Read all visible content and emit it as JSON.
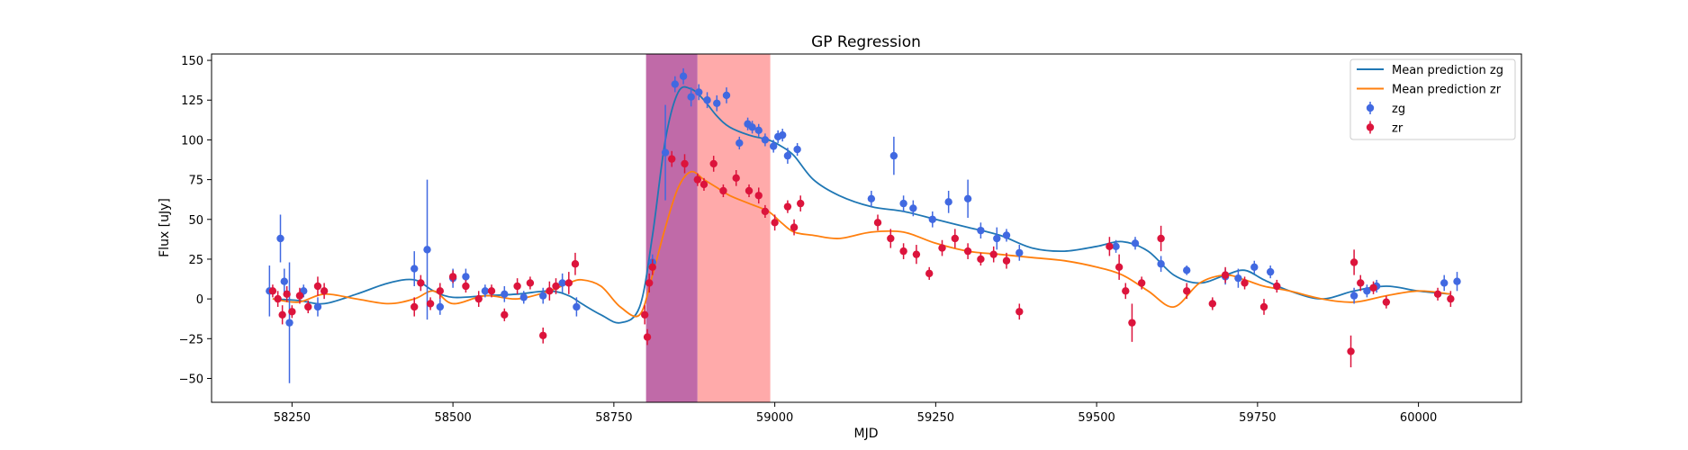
{
  "chart_data": {
    "type": "scatter",
    "title": "GP Regression",
    "xlabel": "MJD",
    "ylabel": "Flux [uJy]",
    "xlim": [
      58125,
      60160
    ],
    "ylim": [
      -65,
      154
    ],
    "xticks": [
      58250,
      58500,
      58750,
      59000,
      59250,
      59500,
      59750,
      60000
    ],
    "yticks": [
      -50,
      -25,
      0,
      25,
      50,
      75,
      100,
      125,
      150
    ],
    "grid": false,
    "legend": "top-right",
    "spans": [
      {
        "x0": 58800,
        "x1": 58880,
        "color": "#c06aa8"
      },
      {
        "x0": 58880,
        "x1": 58993,
        "color": "#ffaaaa"
      }
    ],
    "lines": [
      {
        "name": "Mean prediction zg",
        "color": "#1f77b4",
        "x": [
          58220,
          58260,
          58300,
          58350,
          58400,
          58440,
          58470,
          58500,
          58550,
          58600,
          58650,
          58680,
          58700,
          58730,
          58760,
          58790,
          58810,
          58830,
          58850,
          58870,
          58890,
          58910,
          58930,
          58960,
          58990,
          59010,
          59030,
          59060,
          59100,
          59150,
          59200,
          59250,
          59300,
          59350,
          59400,
          59450,
          59500,
          59540,
          59580,
          59620,
          59660,
          59700,
          59730,
          59760,
          59800,
          59850,
          59900,
          59950,
          60000,
          60050
        ],
        "y": [
          0,
          -1,
          -3,
          3,
          10,
          12,
          5,
          1,
          2,
          3,
          5,
          2,
          -3,
          -10,
          -15,
          -5,
          40,
          100,
          130,
          132,
          125,
          115,
          108,
          103,
          100,
          96,
          90,
          75,
          65,
          58,
          55,
          50,
          45,
          40,
          32,
          30,
          33,
          36,
          30,
          15,
          10,
          15,
          18,
          12,
          5,
          0,
          5,
          8,
          5,
          3
        ]
      },
      {
        "name": "Mean prediction zr",
        "color": "#ff7f0e",
        "x": [
          58220,
          58260,
          58300,
          58350,
          58400,
          58440,
          58470,
          58500,
          58550,
          58600,
          58650,
          58680,
          58700,
          58730,
          58760,
          58790,
          58810,
          58830,
          58850,
          58870,
          58890,
          58910,
          58930,
          58960,
          58990,
          59010,
          59030,
          59060,
          59100,
          59150,
          59200,
          59250,
          59300,
          59350,
          59400,
          59450,
          59500,
          59540,
          59580,
          59620,
          59660,
          59700,
          59730,
          59760,
          59800,
          59850,
          59900,
          59950,
          60000,
          60050
        ],
        "y": [
          0,
          -2,
          3,
          0,
          -3,
          0,
          5,
          -3,
          2,
          0,
          5,
          10,
          12,
          8,
          -5,
          -10,
          15,
          45,
          70,
          80,
          75,
          70,
          65,
          60,
          55,
          48,
          42,
          40,
          38,
          42,
          42,
          35,
          30,
          28,
          26,
          24,
          20,
          15,
          5,
          -5,
          10,
          15,
          12,
          8,
          5,
          0,
          -2,
          2,
          5,
          3
        ]
      }
    ],
    "series": [
      {
        "name": "zg",
        "color": "#4169e1",
        "x": [
          58215,
          58232,
          58238,
          58246,
          58268,
          58290,
          58440,
          58460,
          58480,
          58500,
          58520,
          58550,
          58580,
          58610,
          58640,
          58670,
          58692,
          58810,
          58830,
          58845,
          58858,
          58870,
          58882,
          58895,
          58910,
          58925,
          58945,
          58958,
          58965,
          58975,
          58985,
          58998,
          59005,
          59012,
          59020,
          59035,
          59150,
          59185,
          59200,
          59215,
          59245,
          59270,
          59300,
          59320,
          59345,
          59360,
          59380,
          59530,
          59560,
          59600,
          59640,
          59700,
          59720,
          59745,
          59770,
          59900,
          59920,
          59935,
          60040,
          60060
        ],
        "y": [
          5,
          38,
          11,
          -15,
          5,
          -5,
          19,
          31,
          -5,
          13,
          14,
          5,
          3,
          1,
          2,
          10,
          -5,
          23,
          92,
          135,
          140,
          127,
          130,
          125,
          123,
          128,
          98,
          110,
          108,
          106,
          100,
          96,
          102,
          103,
          90,
          94,
          63,
          90,
          60,
          57,
          50,
          61,
          63,
          43,
          38,
          40,
          29,
          33,
          35,
          22,
          18,
          14,
          13,
          20,
          17,
          2,
          5,
          8,
          10,
          11
        ],
        "err": [
          16,
          15,
          8,
          38,
          4,
          6,
          11,
          44,
          5,
          6,
          5,
          4,
          5,
          4,
          5,
          6,
          6,
          5,
          30,
          5,
          5,
          6,
          5,
          5,
          5,
          5,
          4,
          4,
          4,
          4,
          4,
          4,
          4,
          4,
          5,
          4,
          5,
          12,
          5,
          5,
          5,
          7,
          12,
          5,
          7,
          4,
          5,
          4,
          4,
          5,
          3,
          5,
          6,
          4,
          4,
          5,
          4,
          4,
          5,
          6
        ]
      },
      {
        "name": "zr",
        "color": "#dc143c",
        "x": [
          58220,
          58228,
          58235,
          58242,
          58250,
          58262,
          58275,
          58290,
          58300,
          58440,
          58450,
          58465,
          58480,
          58500,
          58520,
          58540,
          58560,
          58580,
          58600,
          58620,
          58640,
          58650,
          58660,
          58680,
          58690,
          58798,
          58802,
          58805,
          58810,
          58840,
          58860,
          58880,
          58890,
          58905,
          58920,
          58940,
          58960,
          58975,
          58985,
          59000,
          59020,
          59030,
          59040,
          59160,
          59180,
          59200,
          59220,
          59240,
          59260,
          59280,
          59300,
          59320,
          59340,
          59360,
          59380,
          59520,
          59535,
          59545,
          59555,
          59570,
          59600,
          59640,
          59680,
          59700,
          59730,
          59760,
          59780,
          59895,
          59900,
          59910,
          59930,
          59950,
          60030,
          60050
        ],
        "y": [
          5,
          0,
          -10,
          3,
          -8,
          2,
          -5,
          8,
          5,
          -5,
          10,
          -3,
          5,
          14,
          8,
          0,
          5,
          -10,
          8,
          10,
          -23,
          5,
          8,
          10,
          22,
          -10,
          -24,
          10,
          20,
          88,
          85,
          75,
          72,
          85,
          68,
          76,
          68,
          65,
          55,
          48,
          58,
          45,
          60,
          48,
          38,
          30,
          28,
          16,
          32,
          38,
          30,
          25,
          28,
          24,
          -8,
          33,
          20,
          5,
          -15,
          10,
          38,
          5,
          -3,
          15,
          10,
          -5,
          8,
          -33,
          23,
          10,
          7,
          -2,
          3,
          0
        ],
        "err": [
          4,
          5,
          6,
          5,
          4,
          5,
          4,
          6,
          5,
          6,
          5,
          4,
          5,
          4,
          4,
          5,
          4,
          4,
          5,
          4,
          5,
          6,
          5,
          7,
          7,
          6,
          5,
          6,
          5,
          5,
          6,
          4,
          4,
          5,
          4,
          5,
          4,
          5,
          4,
          5,
          4,
          5,
          5,
          5,
          6,
          5,
          6,
          4,
          5,
          6,
          5,
          4,
          5,
          5,
          5,
          6,
          8,
          5,
          12,
          4,
          8,
          5,
          4,
          5,
          4,
          5,
          4,
          10,
          8,
          5,
          4,
          4,
          4,
          5
        ]
      }
    ]
  }
}
